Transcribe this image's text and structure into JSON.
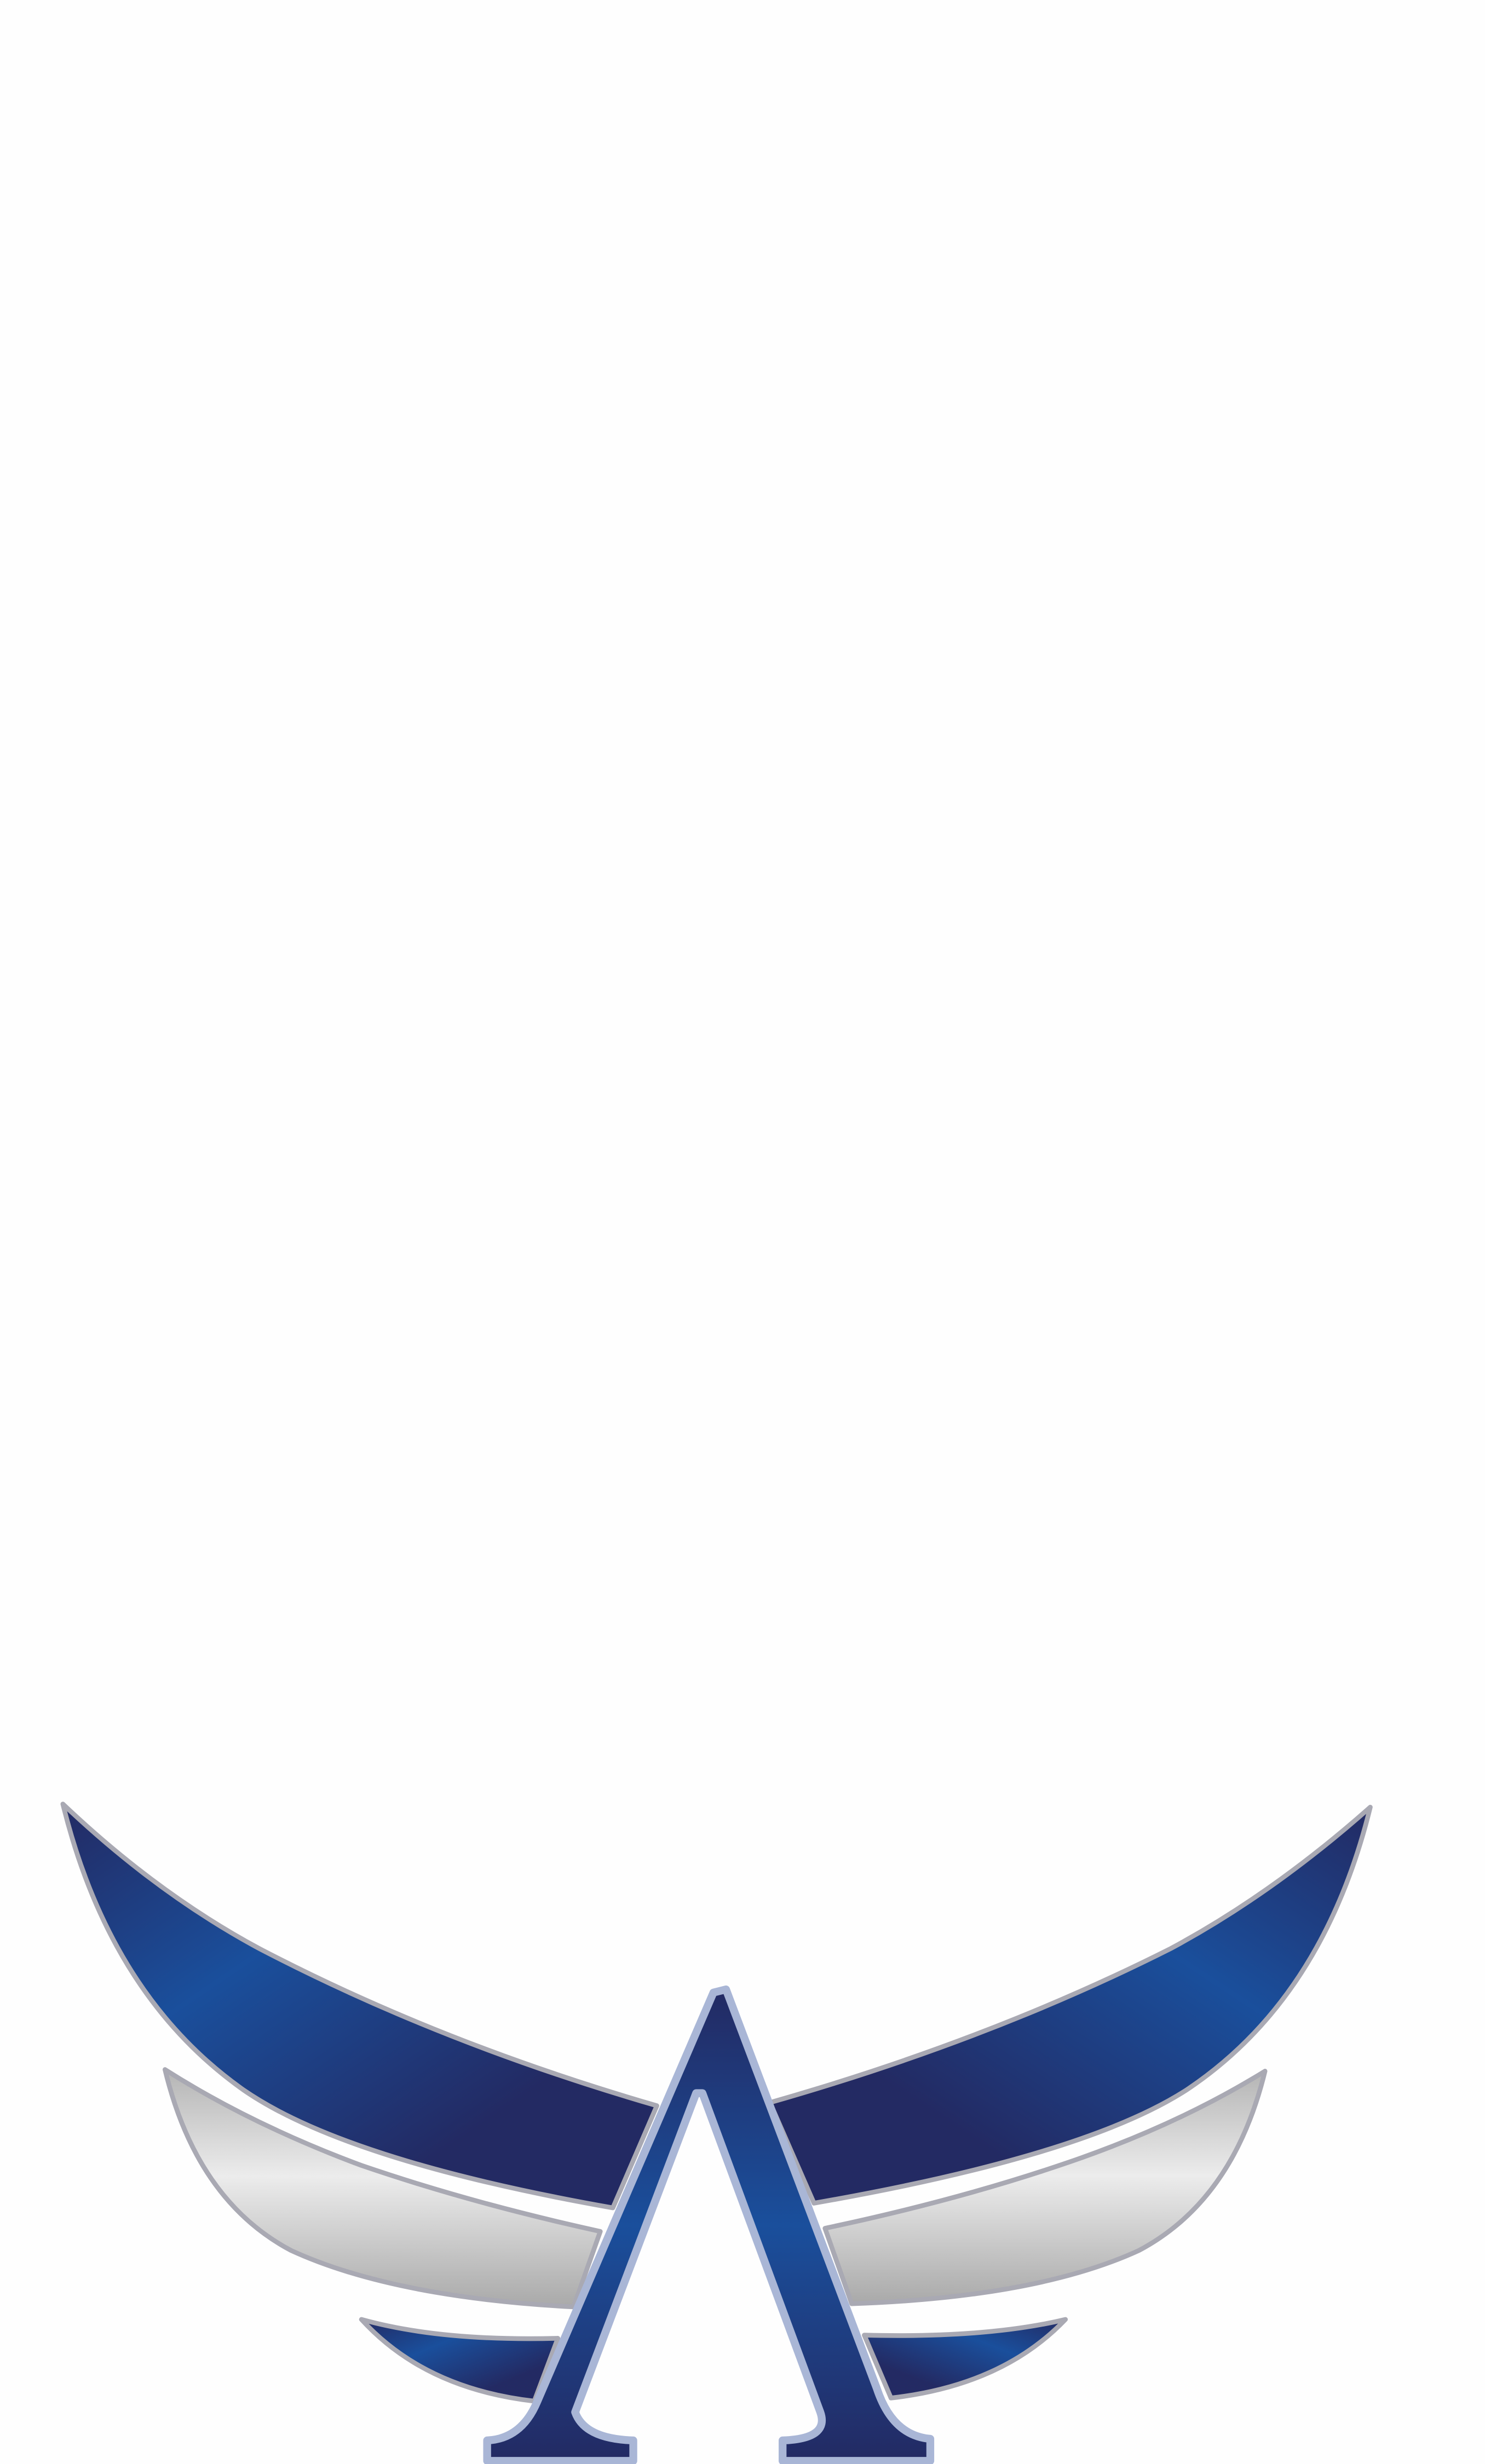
{
  "logo": {
    "icon": "winged-letter-a-logo",
    "colors": {
      "background": "#fefefe",
      "blue_dark": "#232a63",
      "blue_bright": "#1a4f9c",
      "silver_light": "#e8e8e8",
      "silver_dark": "#adadad",
      "outline": "#a9b6d6"
    }
  }
}
